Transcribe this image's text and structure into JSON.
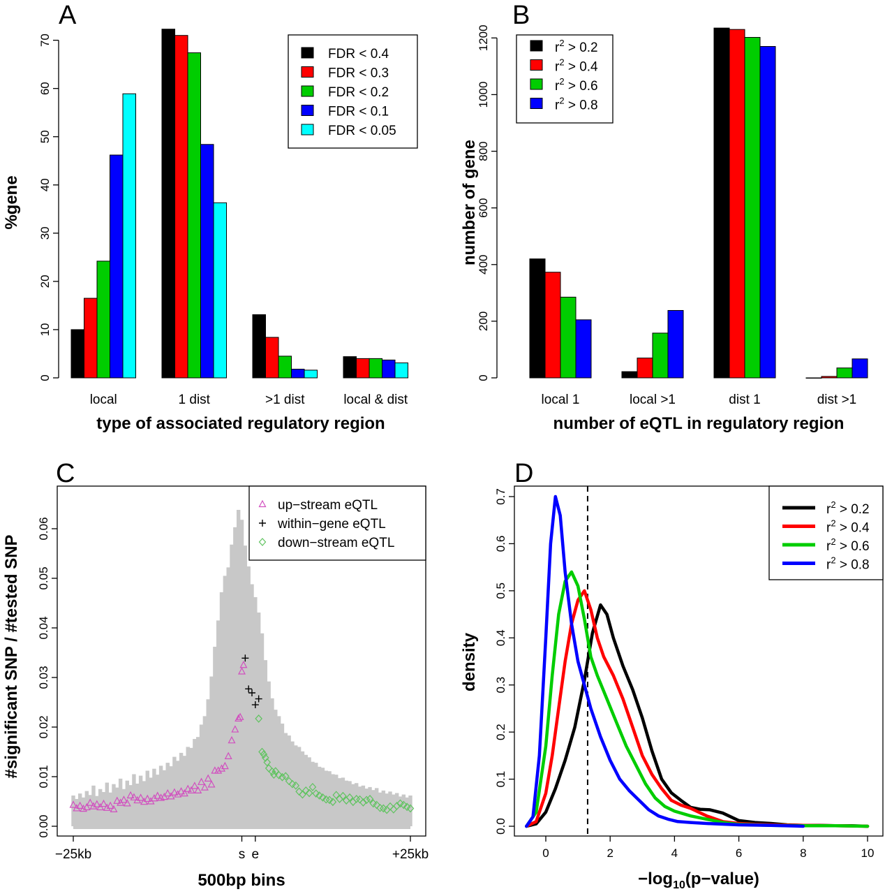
{
  "chart_data": [
    {
      "panel": "A",
      "type": "bar",
      "categories": [
        "local",
        "1 dist",
        ">1 dist",
        "local & dist"
      ],
      "series": [
        {
          "name": "FDR < 0.4",
          "color": "#000000",
          "values": [
            10.0,
            72.3,
            13.1,
            4.4
          ]
        },
        {
          "name": "FDR < 0.3",
          "color": "#ff0000",
          "values": [
            16.5,
            71.0,
            8.4,
            4.0
          ]
        },
        {
          "name": "FDR < 0.2",
          "color": "#00cd00",
          "values": [
            24.2,
            67.4,
            4.5,
            4.0
          ]
        },
        {
          "name": "FDR < 0.1",
          "color": "#0000ff",
          "values": [
            46.2,
            48.4,
            1.8,
            3.7
          ]
        },
        {
          "name": "FDR < 0.05",
          "color": "#00ffff",
          "values": [
            58.9,
            36.3,
            1.6,
            3.1
          ]
        }
      ],
      "xlabel": "type of associated regulatory region",
      "ylabel": "%gene",
      "ylim": [
        0,
        74
      ],
      "yticks": [
        0,
        10,
        20,
        30,
        40,
        50,
        60,
        70
      ],
      "legend": "top-right"
    },
    {
      "panel": "B",
      "type": "bar",
      "categories": [
        "local 1",
        "local >1",
        "dist 1",
        "dist >1"
      ],
      "series": [
        {
          "name": "r2 > 0.2",
          "color": "#000000",
          "values": [
            420,
            22,
            1235,
            0
          ]
        },
        {
          "name": "r2 > 0.4",
          "color": "#ff0000",
          "values": [
            373,
            70,
            1230,
            5
          ]
        },
        {
          "name": "r2 > 0.6",
          "color": "#00cd00",
          "values": [
            285,
            158,
            1202,
            35
          ]
        },
        {
          "name": "r2 > 0.8",
          "color": "#0000ff",
          "values": [
            205,
            238,
            1170,
            67
          ]
        }
      ],
      "xlabel": "number of eQTL in regulatory region",
      "ylabel": "number of gene",
      "ylim": [
        0,
        1260
      ],
      "yticks": [
        0,
        200,
        400,
        600,
        800,
        1000,
        1200
      ],
      "legend": "top-left"
    },
    {
      "panel": "C",
      "type": "scatter",
      "xlabel": "500bp bins",
      "ylabel": "#significant SNP / #tested SNP",
      "ylim": [
        0,
        0.065
      ],
      "yticks": [
        0.0,
        0.01,
        0.02,
        0.03,
        0.04,
        0.05,
        0.06
      ],
      "ytick_labels": [
        "0.00",
        "0.01",
        "0.02",
        "0.03",
        "0.04",
        "0.05",
        "0.06"
      ],
      "xticks": [
        -50,
        0,
        4,
        50
      ],
      "xtick_labels": [
        "−25kb",
        "s",
        "e",
        "+25kb"
      ],
      "xlim": [
        -50,
        50
      ],
      "legend": "top-right",
      "background_bars": [
        0.0062,
        0.0055,
        0.0066,
        0.0058,
        0.0071,
        0.0063,
        0.0082,
        0.0061,
        0.0075,
        0.0069,
        0.0088,
        0.0068,
        0.0085,
        0.0078,
        0.0096,
        0.0075,
        0.0092,
        0.0083,
        0.0105,
        0.0086,
        0.0102,
        0.0091,
        0.0112,
        0.0098,
        0.0116,
        0.0104,
        0.0122,
        0.0113,
        0.0128,
        0.0121,
        0.014,
        0.0132,
        0.0148,
        0.0142,
        0.016,
        0.0158,
        0.0176,
        0.018,
        0.0205,
        0.0222,
        0.0256,
        0.0302,
        0.0362,
        0.0415,
        0.0472,
        0.0505,
        0.0522,
        0.0568,
        0.0603,
        0.0638,
        0.0618,
        0.0566,
        0.0524,
        0.0488,
        0.0462,
        0.0431,
        0.0389,
        0.0335,
        0.0292,
        0.0258,
        0.0235,
        0.0222,
        0.0207,
        0.0188,
        0.0183,
        0.0171,
        0.0163,
        0.016,
        0.0151,
        0.0144,
        0.0139,
        0.013,
        0.0128,
        0.012,
        0.0118,
        0.0112,
        0.0111,
        0.0105,
        0.0104,
        0.0097,
        0.0098,
        0.0092,
        0.0091,
        0.0085,
        0.0087,
        0.008,
        0.0082,
        0.0076,
        0.0079,
        0.0073,
        0.0077,
        0.0068,
        0.0072,
        0.0066,
        0.007,
        0.0064,
        0.0067,
        0.006,
        0.0064,
        0.0058,
        0.0062
      ],
      "series": [
        {
          "name": "up−stream eQTL",
          "marker": "triangle",
          "color": "#d14fbf",
          "points": [
            [
              -50,
              0.0043
            ],
            [
              -49,
              0.0036
            ],
            [
              -48,
              0.0041
            ],
            [
              -47,
              0.0035
            ],
            [
              -46,
              0.0038
            ],
            [
              -45,
              0.0047
            ],
            [
              -44,
              0.004
            ],
            [
              -43,
              0.0044
            ],
            [
              -42,
              0.0038
            ],
            [
              -41,
              0.0045
            ],
            [
              -40,
              0.0037
            ],
            [
              -39,
              0.0041
            ],
            [
              -38,
              0.0034
            ],
            [
              -37,
              0.0051
            ],
            [
              -36,
              0.0047
            ],
            [
              -35,
              0.0053
            ],
            [
              -34,
              0.0046
            ],
            [
              -33,
              0.0062
            ],
            [
              -32,
              0.0058
            ],
            [
              -31,
              0.0052
            ],
            [
              -30,
              0.0057
            ],
            [
              -29,
              0.0049
            ],
            [
              -28,
              0.0055
            ],
            [
              -27,
              0.005
            ],
            [
              -26,
              0.0056
            ],
            [
              -25,
              0.0061
            ],
            [
              -24,
              0.0057
            ],
            [
              -23,
              0.0059
            ],
            [
              -22,
              0.0066
            ],
            [
              -21,
              0.006
            ],
            [
              -20,
              0.0068
            ],
            [
              -19,
              0.0064
            ],
            [
              -18,
              0.007
            ],
            [
              -17,
              0.0066
            ],
            [
              -16,
              0.0075
            ],
            [
              -15,
              0.0072
            ],
            [
              -14,
              0.0081
            ],
            [
              -13,
              0.0072
            ],
            [
              -12,
              0.0089
            ],
            [
              -11,
              0.0078
            ],
            [
              -10,
              0.0096
            ],
            [
              -9,
              0.0084
            ],
            [
              -8,
              0.0112
            ],
            [
              -7,
              0.0112
            ],
            [
              -6,
              0.0116
            ],
            [
              -5,
              0.0121
            ],
            [
              -4,
              0.0141
            ],
            [
              -3,
              0.0173
            ],
            [
              -2,
              0.0195
            ],
            [
              -1,
              0.0217
            ],
            [
              -0.5,
              0.022
            ],
            [
              0,
              0.0312
            ],
            [
              0.5,
              0.0325
            ]
          ]
        },
        {
          "name": "within−gene eQTL",
          "marker": "plus",
          "color": "#000000",
          "points": [
            [
              1,
              0.0339
            ],
            [
              2,
              0.0277
            ],
            [
              3,
              0.0269
            ],
            [
              4,
              0.0245
            ],
            [
              5,
              0.0257
            ]
          ]
        },
        {
          "name": "down−stream eQTL",
          "marker": "diamond",
          "color": "#5fc35f",
          "points": [
            [
              5,
              0.0217
            ],
            [
              6,
              0.015
            ],
            [
              6.5,
              0.0145
            ],
            [
              7,
              0.0138
            ],
            [
              7.5,
              0.0129
            ],
            [
              8,
              0.0117
            ],
            [
              9,
              0.011
            ],
            [
              9.5,
              0.0104
            ],
            [
              10,
              0.0111
            ],
            [
              11,
              0.0103
            ],
            [
              12,
              0.0099
            ],
            [
              13,
              0.0101
            ],
            [
              14,
              0.0091
            ],
            [
              15,
              0.0085
            ],
            [
              16,
              0.0082
            ],
            [
              17,
              0.007
            ],
            [
              18,
              0.0064
            ],
            [
              19,
              0.0072
            ],
            [
              20,
              0.0067
            ],
            [
              21,
              0.0079
            ],
            [
              22,
              0.0066
            ],
            [
              23,
              0.0062
            ],
            [
              24,
              0.0058
            ],
            [
              25,
              0.0054
            ],
            [
              26,
              0.0053
            ],
            [
              27,
              0.0049
            ],
            [
              28,
              0.0063
            ],
            [
              29,
              0.0055
            ],
            [
              30,
              0.0061
            ],
            [
              31,
              0.0052
            ],
            [
              32,
              0.0058
            ],
            [
              33,
              0.0049
            ],
            [
              34,
              0.0055
            ],
            [
              35,
              0.0054
            ],
            [
              36,
              0.0048
            ],
            [
              37,
              0.0053
            ],
            [
              38,
              0.0055
            ],
            [
              39,
              0.0046
            ],
            [
              40,
              0.0043
            ],
            [
              41,
              0.0037
            ],
            [
              42,
              0.0036
            ],
            [
              43,
              0.0033
            ],
            [
              44,
              0.004
            ],
            [
              45,
              0.0034
            ],
            [
              46,
              0.0041
            ],
            [
              47,
              0.0046
            ],
            [
              48,
              0.0043
            ],
            [
              49,
              0.0039
            ],
            [
              50,
              0.0036
            ]
          ]
        }
      ]
    },
    {
      "panel": "D",
      "type": "line",
      "xlabel": "−log10(p−value)",
      "ylabel": "density",
      "xlim": [
        -0.7,
        10
      ],
      "ylim": [
        0,
        0.72
      ],
      "xticks": [
        0,
        2,
        4,
        6,
        8,
        10
      ],
      "yticks": [
        0.0,
        0.1,
        0.2,
        0.3,
        0.4,
        0.5,
        0.6,
        0.7
      ],
      "vline": 1.3,
      "legend": "top-right",
      "series": [
        {
          "name": "r2 > 0.2",
          "color": "#000000",
          "x": [
            -0.6,
            -0.3,
            0,
            0.3,
            0.6,
            0.9,
            1.2,
            1.45,
            1.7,
            1.9,
            2.1,
            2.4,
            2.7,
            3.0,
            3.3,
            3.6,
            3.9,
            4.2,
            4.5,
            4.8,
            5.1,
            5.5,
            6.0,
            6.5,
            7.0,
            7.5,
            8.0,
            8.5,
            9.0,
            9.5,
            10.0
          ],
          "y": [
            0,
            0.005,
            0.03,
            0.08,
            0.14,
            0.21,
            0.31,
            0.41,
            0.47,
            0.45,
            0.4,
            0.34,
            0.29,
            0.23,
            0.16,
            0.1,
            0.071,
            0.055,
            0.04,
            0.036,
            0.035,
            0.028,
            0.012,
            0.008,
            0.006,
            0.003,
            0.002,
            0.002,
            0.001,
            0.001,
            0
          ]
        },
        {
          "name": "r2 > 0.4",
          "color": "#ff0000",
          "x": [
            -0.6,
            -0.3,
            0,
            0.2,
            0.4,
            0.6,
            0.8,
            1.0,
            1.2,
            1.4,
            1.6,
            1.8,
            2.1,
            2.4,
            2.7,
            3.0,
            3.3,
            3.6,
            3.9,
            4.2,
            4.5,
            5.0,
            5.5,
            6.0,
            6.5,
            7.0,
            8.0,
            9.0,
            10.0
          ],
          "y": [
            0,
            0.01,
            0.07,
            0.15,
            0.25,
            0.35,
            0.43,
            0.48,
            0.5,
            0.46,
            0.4,
            0.36,
            0.32,
            0.27,
            0.21,
            0.15,
            0.11,
            0.08,
            0.055,
            0.045,
            0.038,
            0.022,
            0.01,
            0.006,
            0.004,
            0.003,
            0.002,
            0.001,
            0
          ]
        },
        {
          "name": "r2 > 0.6",
          "color": "#00cd00",
          "x": [
            -0.6,
            -0.3,
            0,
            0.2,
            0.4,
            0.6,
            0.8,
            1.0,
            1.2,
            1.4,
            1.6,
            1.9,
            2.2,
            2.5,
            2.8,
            3.1,
            3.4,
            3.7,
            4.0,
            4.5,
            5.0,
            5.5,
            6.0,
            7.0,
            8.0,
            9.0,
            10.0
          ],
          "y": [
            0,
            0.03,
            0.17,
            0.32,
            0.45,
            0.52,
            0.54,
            0.51,
            0.44,
            0.36,
            0.32,
            0.27,
            0.22,
            0.17,
            0.13,
            0.09,
            0.06,
            0.042,
            0.032,
            0.022,
            0.015,
            0.008,
            0.004,
            0.002,
            0.001,
            0.001,
            0
          ]
        },
        {
          "name": "r2 > 0.8",
          "color": "#0000ff",
          "x": [
            -0.6,
            -0.4,
            -0.2,
            0,
            0.15,
            0.3,
            0.45,
            0.6,
            0.8,
            1.0,
            1.2,
            1.4,
            1.7,
            2.0,
            2.3,
            2.6,
            2.9,
            3.2,
            3.5,
            3.8,
            4.1,
            4.5,
            5.0,
            6.0,
            7.0,
            8.0
          ],
          "y": [
            0,
            0.02,
            0.15,
            0.4,
            0.6,
            0.7,
            0.66,
            0.54,
            0.43,
            0.35,
            0.3,
            0.25,
            0.19,
            0.14,
            0.1,
            0.075,
            0.055,
            0.035,
            0.022,
            0.015,
            0.01,
            0.008,
            0.006,
            0.003,
            0.002,
            0
          ]
        }
      ]
    }
  ],
  "labels": {
    "A": {
      "letter": "A",
      "xlabel": "type of associated regulatory region",
      "ylabel": "%gene"
    },
    "B": {
      "letter": "B",
      "xlabel": "number of eQTL in regulatory region",
      "ylabel": "number of gene"
    },
    "C": {
      "letter": "C",
      "xlabel": "500bp bins",
      "ylabel": "#significant SNP / #tested SNP"
    },
    "D": {
      "letter": "D",
      "xlabel_prefix": "−log",
      "xlabel_sub": "10",
      "xlabel_suffix": "(p−value)",
      "ylabel": "density"
    }
  }
}
